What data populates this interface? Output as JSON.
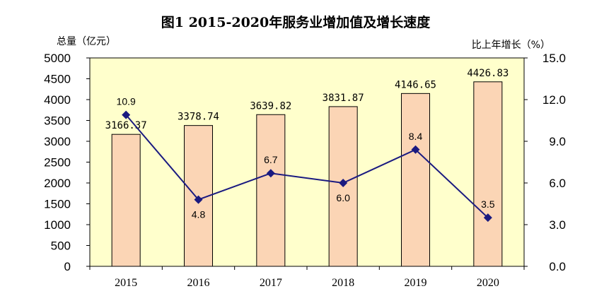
{
  "chart_data": {
    "type": "bar+line",
    "title": "图1 2015-2020年服务业增加值及增长速度",
    "ylabel_left": "总量（亿元）",
    "ylabel_right": "比上年增长（%）",
    "categories": [
      "2015",
      "2016",
      "2017",
      "2018",
      "2019",
      "2020"
    ],
    "series": [
      {
        "name": "总量",
        "type": "bar",
        "axis": "left",
        "values": [
          3166.37,
          3378.74,
          3639.82,
          3831.87,
          4146.65,
          4426.83
        ],
        "labels": [
          "3166.37",
          "3378.74",
          "3639.82",
          "3831.87",
          "4146.65",
          "4426.83"
        ]
      },
      {
        "name": "比上年增长",
        "type": "line",
        "axis": "right",
        "values": [
          10.9,
          4.8,
          6.7,
          6.0,
          8.4,
          3.5
        ],
        "labels": [
          "10.9",
          "4.8",
          "6.7",
          "6.0",
          "8.4",
          "3.5"
        ]
      }
    ],
    "ylim_left": [
      0,
      5000
    ],
    "ylim_right": [
      0,
      15
    ],
    "yticks_left": [
      "0",
      "500",
      "1000",
      "1500",
      "2000",
      "2500",
      "3000",
      "3500",
      "4000",
      "4500",
      "5000"
    ],
    "yticks_right": [
      "0.0",
      "3.0",
      "6.0",
      "9.0",
      "12.0",
      "15.0"
    ],
    "grid": false,
    "colors": {
      "plot_background": "#FFFFCC",
      "bar_fill": "#FBD5B5",
      "bar_stroke": "#000000",
      "line": "#1A1A80",
      "marker": "#1A1A80"
    }
  }
}
